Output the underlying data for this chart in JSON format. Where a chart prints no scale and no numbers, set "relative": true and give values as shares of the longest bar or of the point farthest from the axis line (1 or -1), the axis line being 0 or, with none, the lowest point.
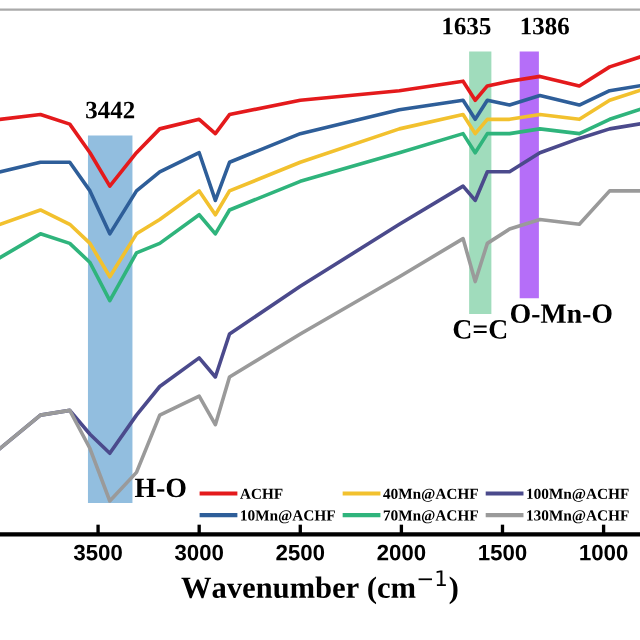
{
  "chart_data": {
    "type": "line",
    "relative": true,
    "xlabel": "Wavenumber (cm$^{−1}$)",
    "x": [
      3985,
      3785,
      3640,
      3540,
      3442,
      3310,
      3195,
      3000,
      2920,
      2850,
      2500,
      2010,
      1695,
      1635,
      1575,
      1465,
      1315,
      1120,
      970,
      825
    ],
    "xlim": [
      3985,
      820
    ],
    "xticks": [
      3500,
      3000,
      2500,
      2000,
      1500,
      1000
    ],
    "tick_labels": "x",
    "grid": false,
    "legend": "bottom right",
    "marker": "none",
    "line_style": "solid",
    "series": [
      {
        "name": "ACHF",
        "color": "#e41a1c",
        "values": [
          0.87,
          0.88,
          0.86,
          0.8,
          0.73,
          0.8,
          0.85,
          0.87,
          0.84,
          0.88,
          0.91,
          0.93,
          0.95,
          0.91,
          0.94,
          0.95,
          0.96,
          0.94,
          0.98,
          1.0
        ]
      },
      {
        "name": "10Mn@ACHF",
        "color": "#2e5e99",
        "values": [
          0.76,
          0.78,
          0.78,
          0.72,
          0.63,
          0.72,
          0.76,
          0.8,
          0.7,
          0.78,
          0.84,
          0.89,
          0.91,
          0.87,
          0.91,
          0.9,
          0.92,
          0.9,
          0.93,
          0.94
        ]
      },
      {
        "name": "40Mn@ACHF",
        "color": "#f2c12e",
        "values": [
          0.65,
          0.68,
          0.65,
          0.61,
          0.54,
          0.63,
          0.66,
          0.72,
          0.67,
          0.72,
          0.78,
          0.85,
          0.88,
          0.84,
          0.87,
          0.87,
          0.88,
          0.87,
          0.91,
          0.93
        ]
      },
      {
        "name": "70Mn@ACHF",
        "color": "#2fb47c",
        "values": [
          0.58,
          0.63,
          0.61,
          0.57,
          0.49,
          0.59,
          0.61,
          0.67,
          0.63,
          0.68,
          0.74,
          0.8,
          0.84,
          0.8,
          0.84,
          0.84,
          0.85,
          0.84,
          0.87,
          0.89
        ]
      },
      {
        "name": "100Mn@ACHF",
        "color": "#4b4a8c",
        "values": [
          0.18,
          0.25,
          0.26,
          0.21,
          0.17,
          0.25,
          0.31,
          0.37,
          0.33,
          0.42,
          0.52,
          0.65,
          0.73,
          0.7,
          0.76,
          0.76,
          0.8,
          0.83,
          0.85,
          0.86
        ]
      },
      {
        "name": "130Mn@ACHF",
        "color": "#9a9a9a",
        "values": [
          0.18,
          0.25,
          0.26,
          0.18,
          0.07,
          0.13,
          0.25,
          0.29,
          0.23,
          0.33,
          0.42,
          0.54,
          0.62,
          0.53,
          0.61,
          0.64,
          0.66,
          0.65,
          0.72,
          0.72
        ]
      }
    ],
    "bands": [
      {
        "axis": "x",
        "from": 3550,
        "to": 3330,
        "color": "#7fb3d9",
        "label": "H-O"
      },
      {
        "axis": "x",
        "from": 1665,
        "to": 1555,
        "color": "#8fd6b0",
        "label": "C=C"
      },
      {
        "axis": "x",
        "from": 1415,
        "to": 1320,
        "color": "#a855f7",
        "label": "O-Mn-O"
      }
    ],
    "annotations": [
      "3442",
      "1635",
      "1386"
    ]
  }
}
